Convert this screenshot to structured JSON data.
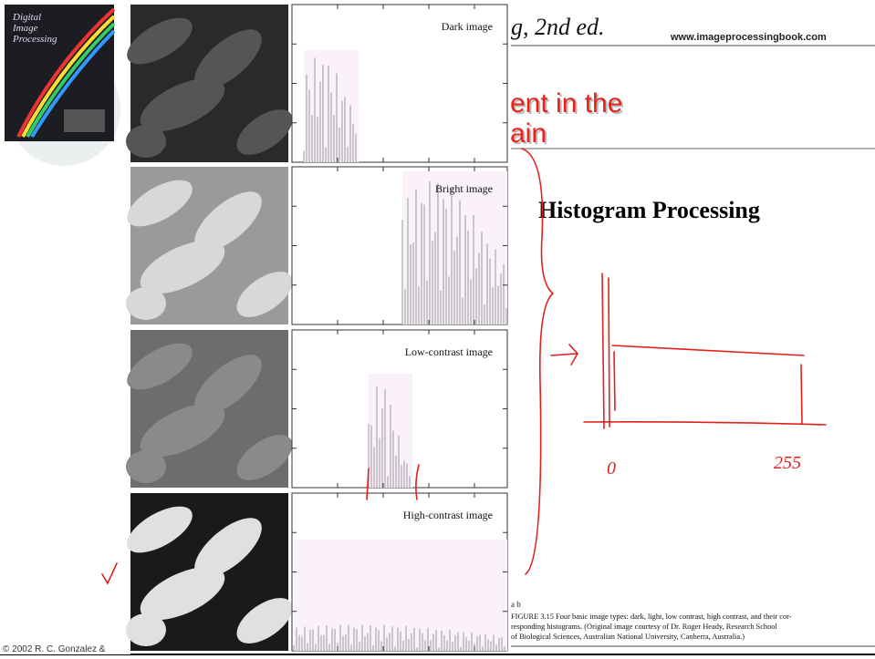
{
  "header": {
    "title_fragment": "g, 2nd ed.",
    "url": "www.imageprocessingbook.com"
  },
  "book_cover": {
    "title_lines": [
      "Digital",
      "Image",
      "Processing"
    ]
  },
  "slide": {
    "title_lines": [
      "ent in the",
      "ain"
    ],
    "heading": "Histogram Processing",
    "footer": "© 2002 R. C. Gonzalez &"
  },
  "figure": {
    "panels": [
      {
        "label": "Dark image"
      },
      {
        "label": "Bright image"
      },
      {
        "label": "Low-contrast image"
      },
      {
        "label": "High-contrast image"
      }
    ],
    "sublabels": "a b",
    "caption": [
      "FIGURE 3.15  Four basic image types: dark, light, low contrast, high contrast, and their cor-",
      "responding histograms. (Original image courtesy of Dr. Roger Heady, Research School",
      "of Biological Sciences, Australian National University, Canberra, Australia.)"
    ]
  },
  "annotations": {
    "axis_labels": [
      "0",
      "255"
    ]
  }
}
